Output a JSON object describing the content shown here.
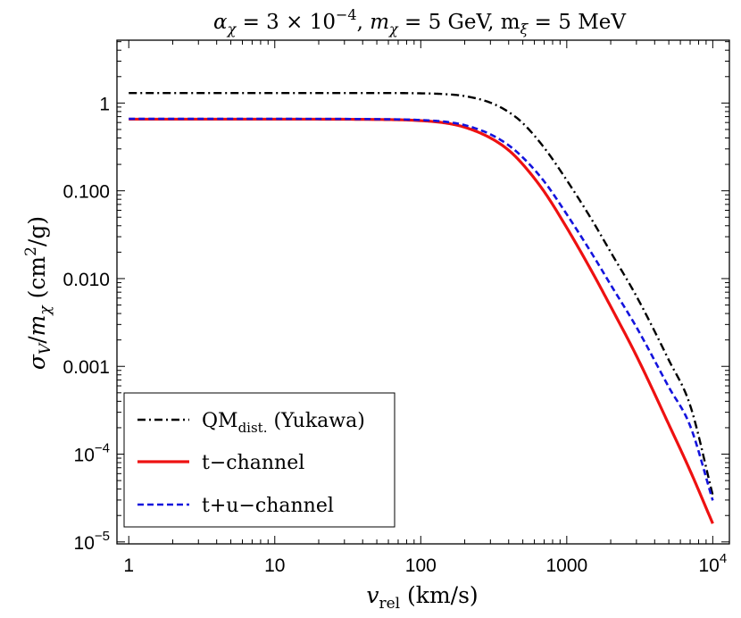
{
  "chart_data": {
    "type": "line",
    "title_parts": {
      "alpha": "α",
      "chi": "χ",
      "eq1": " = 3 × 10",
      "exp1": "−4",
      "sep1": ", ",
      "m": "m",
      "eq2": " = 5 GeV, m",
      "xi": "ξ",
      "eq3": " = 5 MeV"
    },
    "xlabel_parts": {
      "v": "v",
      "sub": "rel",
      "unit": "  (km/s)"
    },
    "ylabel_parts": {
      "sigma": "σ",
      "V": "V",
      "slash": "/",
      "m": "m",
      "chi": "χ",
      "unit": " (cm",
      "sq": "2",
      "unit2": "/g)"
    },
    "x_scale": "log",
    "y_scale": "log",
    "xlim": [
      0.83,
      13000
    ],
    "ylim": [
      9.5e-06,
      5.2
    ],
    "x_ticks": [
      {
        "value": 1,
        "label": "1"
      },
      {
        "value": 10,
        "label": "10"
      },
      {
        "value": 100,
        "label": "100"
      },
      {
        "value": 1000,
        "label": "1000"
      }
    ],
    "x_tick_pow": {
      "value": 10000,
      "base": "10",
      "exp": "4"
    },
    "y_ticks": [
      {
        "value": 1,
        "label": "1"
      },
      {
        "value": 0.1,
        "label": "0.100"
      },
      {
        "value": 0.01,
        "label": "0.010"
      },
      {
        "value": 0.001,
        "label": "0.001"
      }
    ],
    "y_tick_pows": [
      {
        "value": 0.0001,
        "base": "10",
        "exp": "−4"
      },
      {
        "value": 1e-05,
        "base": "10",
        "exp": "−5"
      }
    ],
    "legend_placement": "bottom-left",
    "legend": {
      "qm_main": "QM",
      "qm_sub": "dist.",
      "qm_rest": " (Yukawa)",
      "t": "t−channel",
      "tu": "t+u−channel"
    },
    "series": [
      {
        "name": "QM dist. (Yukawa)",
        "color": "#000000",
        "style": "dash-dot",
        "x": [
          1,
          10,
          50,
          100,
          150,
          200,
          300,
          400,
          500,
          700,
          1000,
          1500,
          2000,
          3000,
          5000,
          7000,
          10000
        ],
        "y": [
          1.3,
          1.3,
          1.3,
          1.29,
          1.26,
          1.2,
          1.01,
          0.79,
          0.59,
          0.31,
          0.132,
          0.0455,
          0.02,
          0.0063,
          0.00118,
          0.00036,
          3.42e-05
        ]
      },
      {
        "name": "t−channel",
        "color": "#ee1111",
        "style": "solid",
        "x": [
          1,
          10,
          50,
          100,
          150,
          200,
          300,
          400,
          500,
          700,
          1000,
          1500,
          2000,
          3000,
          5000,
          7000,
          10000
        ],
        "y": [
          0.655,
          0.655,
          0.65,
          0.63,
          0.59,
          0.53,
          0.4,
          0.29,
          0.2,
          0.098,
          0.038,
          0.0117,
          0.0048,
          0.00132,
          0.000218,
          6.48e-05,
          1.62e-05
        ]
      },
      {
        "name": "t+u−channel",
        "color": "#1414dd",
        "style": "dashed",
        "x": [
          1,
          10,
          50,
          100,
          150,
          200,
          300,
          400,
          500,
          700,
          1000,
          1500,
          2000,
          3000,
          5000,
          7000,
          10000
        ],
        "y": [
          0.66,
          0.66,
          0.655,
          0.64,
          0.61,
          0.56,
          0.44,
          0.33,
          0.24,
          0.128,
          0.054,
          0.0188,
          0.0085,
          0.0028,
          0.00058,
          0.00021,
          2.97e-05
        ]
      }
    ]
  }
}
